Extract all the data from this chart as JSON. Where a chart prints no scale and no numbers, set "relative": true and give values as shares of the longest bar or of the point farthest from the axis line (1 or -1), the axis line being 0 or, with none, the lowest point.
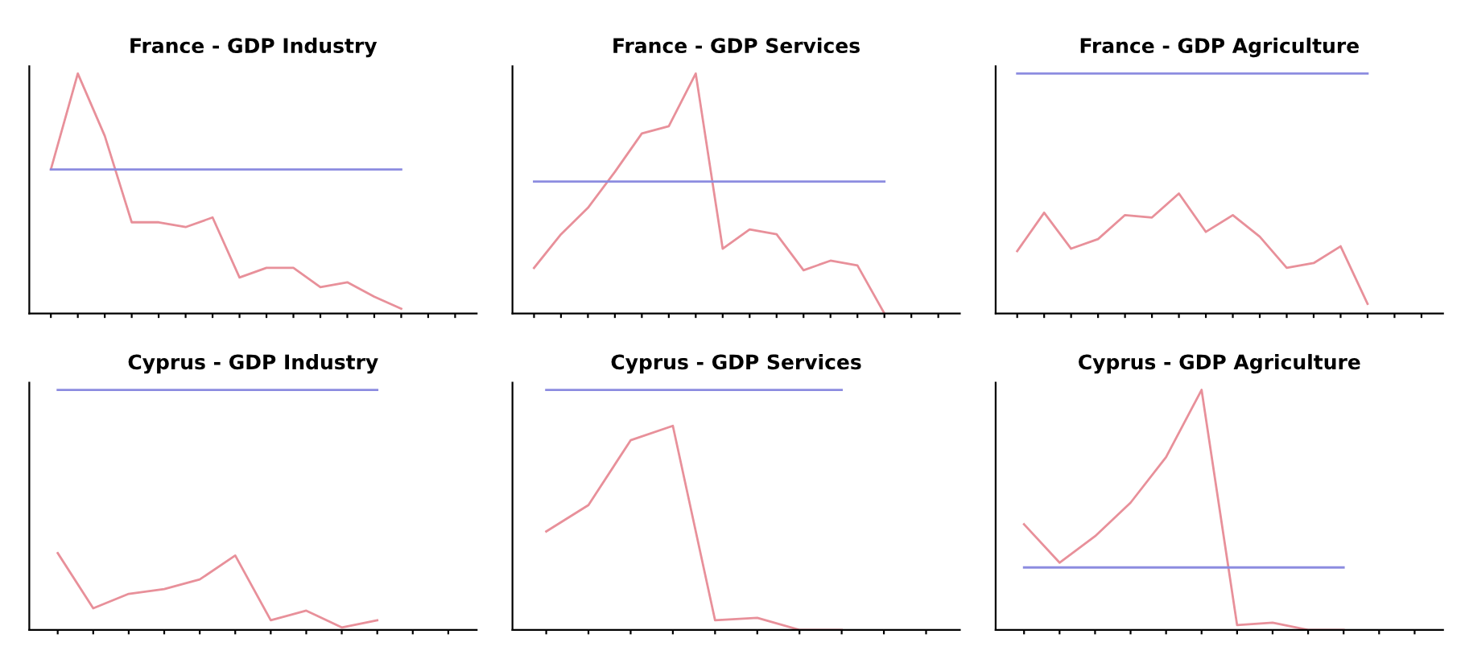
{
  "chart_data": [
    {
      "type": "line",
      "title": "France - GDP Industry",
      "relative": true,
      "categories": [
        null,
        null,
        null,
        null,
        null,
        null,
        null,
        null,
        null,
        null,
        null,
        null,
        null,
        null,
        null,
        null
      ],
      "series": [
        {
          "color": "#e8909a",
          "values": [
            0.6,
            1,
            0.74,
            0.38,
            0.38,
            0.36,
            0.4,
            0.15,
            0.19,
            0.19,
            0.11,
            0.13,
            0.07,
            0.02,
            null,
            null
          ]
        },
        {
          "color": "#8c8ce0",
          "values": [
            0.6,
            0.6,
            0.6,
            0.6,
            0.6,
            0.6,
            0.6,
            0.6,
            0.6,
            0.6,
            0.6,
            0.6,
            0.6,
            0.6,
            null,
            null
          ]
        }
      ]
    },
    {
      "type": "line",
      "title": "France - GDP Services",
      "relative": true,
      "categories": [
        null,
        null,
        null,
        null,
        null,
        null,
        null,
        null,
        null,
        null,
        null,
        null,
        null,
        null,
        null,
        null
      ],
      "series": [
        {
          "color": "#e8909a",
          "values": [
            0.19,
            0.33,
            0.44,
            0.59,
            0.75,
            0.78,
            1,
            0.27,
            0.35,
            0.33,
            0.18,
            0.22,
            0.2,
            0,
            null,
            null
          ]
        },
        {
          "color": "#8c8ce0",
          "values": [
            0.55,
            0.55,
            0.55,
            0.55,
            0.55,
            0.55,
            0.55,
            0.55,
            0.55,
            0.55,
            0.55,
            0.55,
            0.55,
            0.55,
            null,
            null
          ]
        }
      ]
    },
    {
      "type": "line",
      "title": "France - GDP Agriculture",
      "relative": true,
      "categories": [
        null,
        null,
        null,
        null,
        null,
        null,
        null,
        null,
        null,
        null,
        null,
        null,
        null,
        null,
        null,
        null
      ],
      "series": [
        {
          "color": "#e8909a",
          "values": [
            0.26,
            0.42,
            0.27,
            0.31,
            0.41,
            0.4,
            0.5,
            0.34,
            0.41,
            0.32,
            0.19,
            0.21,
            0.28,
            0.04,
            null,
            null
          ]
        },
        {
          "color": "#8c8ce0",
          "values": [
            1,
            1,
            1,
            1,
            1,
            1,
            1,
            1,
            1,
            1,
            1,
            1,
            1,
            1,
            null,
            null
          ]
        }
      ]
    },
    {
      "type": "line",
      "title": "Cyprus - GDP Industry",
      "relative": true,
      "categories": [
        null,
        null,
        null,
        null,
        null,
        null,
        null,
        null,
        null,
        null,
        null,
        null
      ],
      "series": [
        {
          "color": "#e8909a",
          "values": [
            0.32,
            0.09,
            0.15,
            0.17,
            0.21,
            0.31,
            0.04,
            0.08,
            0.01,
            0.04,
            null,
            null
          ]
        },
        {
          "color": "#8c8ce0",
          "values": [
            1,
            1,
            1,
            1,
            1,
            1,
            1,
            1,
            1,
            1,
            null,
            null
          ]
        }
      ]
    },
    {
      "type": "line",
      "title": "Cyprus - GDP Services",
      "relative": true,
      "categories": [
        null,
        null,
        null,
        null,
        null,
        null,
        null,
        null,
        null,
        null
      ],
      "series": [
        {
          "color": "#e8909a",
          "values": [
            0.41,
            0.52,
            0.79,
            0.85,
            0.04,
            0.05,
            0,
            0,
            null,
            null
          ]
        },
        {
          "color": "#8c8ce0",
          "values": [
            1,
            1,
            1,
            1,
            1,
            1,
            1,
            1,
            null,
            null
          ]
        }
      ]
    },
    {
      "type": "line",
      "title": "Cyprus - GDP Agriculture",
      "relative": true,
      "categories": [
        null,
        null,
        null,
        null,
        null,
        null,
        null,
        null,
        null,
        null,
        null,
        null
      ],
      "series": [
        {
          "color": "#e8909a",
          "values": [
            0.44,
            0.28,
            0.39,
            0.53,
            0.72,
            1,
            0.02,
            0.03,
            0,
            0,
            null,
            null
          ]
        },
        {
          "color": "#8c8ce0",
          "values": [
            0.26,
            0.26,
            0.26,
            0.26,
            0.26,
            0.26,
            0.26,
            0.26,
            0.26,
            0.26,
            null,
            null
          ]
        }
      ]
    }
  ]
}
